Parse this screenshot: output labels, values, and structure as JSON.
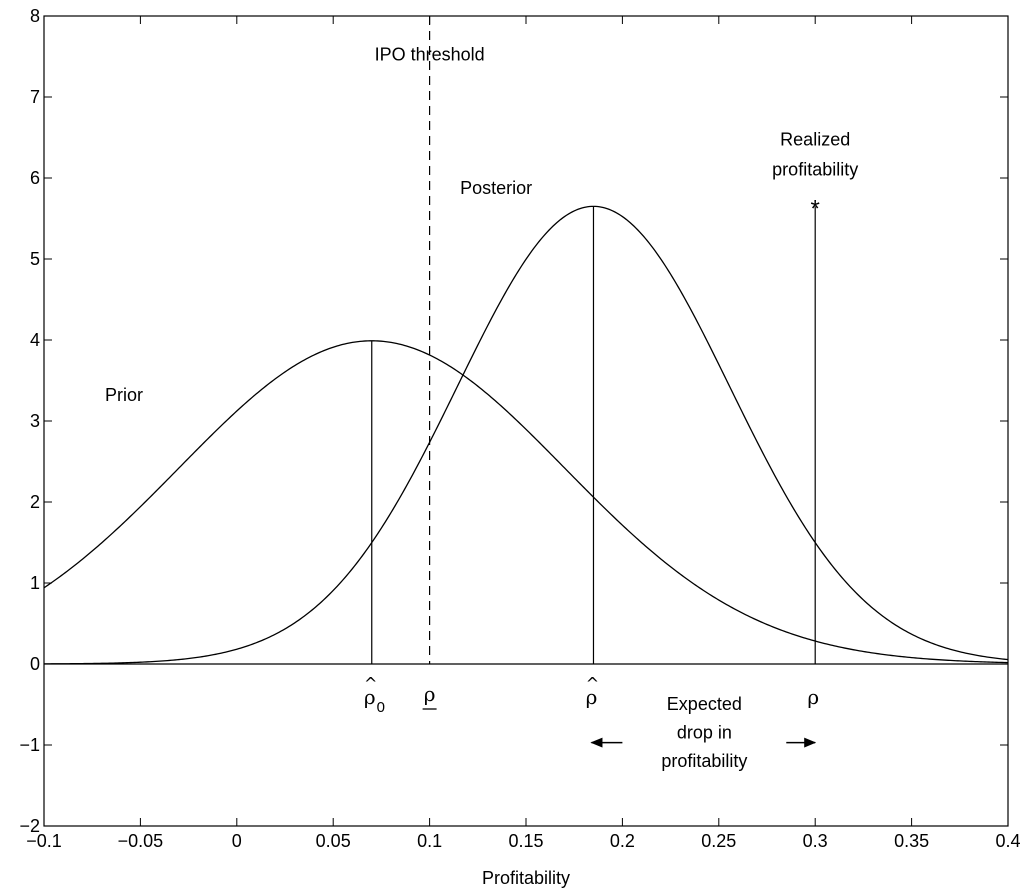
{
  "chart_data": {
    "type": "line",
    "title": "",
    "xlabel": "Profitability",
    "ylabel": "",
    "xlim": [
      -0.1,
      0.4
    ],
    "ylim": [
      -2,
      8
    ],
    "xticks": [
      -0.1,
      -0.05,
      0,
      0.05,
      0.1,
      0.15,
      0.2,
      0.25,
      0.3,
      0.35,
      0.4
    ],
    "xtick_labels": [
      "−0.1",
      "−0.05",
      "0",
      "0.05",
      "0.1",
      "0.15",
      "0.2",
      "0.25",
      "0.3",
      "0.35",
      "0.4"
    ],
    "yticks": [
      -2,
      -1,
      0,
      1,
      2,
      3,
      4,
      5,
      6,
      7,
      8
    ],
    "ytick_labels": [
      "−2",
      "−1",
      "0",
      "1",
      "2",
      "3",
      "4",
      "5",
      "6",
      "7",
      "8"
    ],
    "grid": false,
    "series": [
      {
        "name": "Prior",
        "distribution": "normal",
        "mean": 0.07,
        "sd": 0.1,
        "peak": 3.99
      },
      {
        "name": "Posterior",
        "distribution": "normal",
        "mean": 0.185,
        "sd": 0.0706,
        "peak": 5.65
      }
    ],
    "baseline": 0,
    "ipo_threshold": {
      "x": 0.1,
      "label": "IPO threshold",
      "style": "dashed"
    },
    "vertical_markers": [
      {
        "x": 0.07,
        "top": 3.99,
        "label_symbol": "ρ",
        "label_hat": "^",
        "label_subscript": "0"
      },
      {
        "x": 0.185,
        "top": 5.65,
        "label_symbol": "ρ",
        "label_hat": "^",
        "label_subscript": ""
      },
      {
        "x": 0.3,
        "top": 5.65,
        "label_symbol": "ρ",
        "label_hat": "",
        "label_subscript": "",
        "marker": "*"
      }
    ],
    "threshold_symbol": {
      "x": 0.1,
      "symbol": "ρ",
      "underline": true
    },
    "annotations": {
      "prior_label": "Prior",
      "posterior_label": "Posterior",
      "realized_line1": "Realized",
      "realized_line2": "profitability",
      "expected_line1": "Expected",
      "expected_line2": "drop in",
      "expected_line3": "profitability",
      "arrow_range": [
        0.185,
        0.3
      ]
    },
    "star_marker": "*"
  }
}
